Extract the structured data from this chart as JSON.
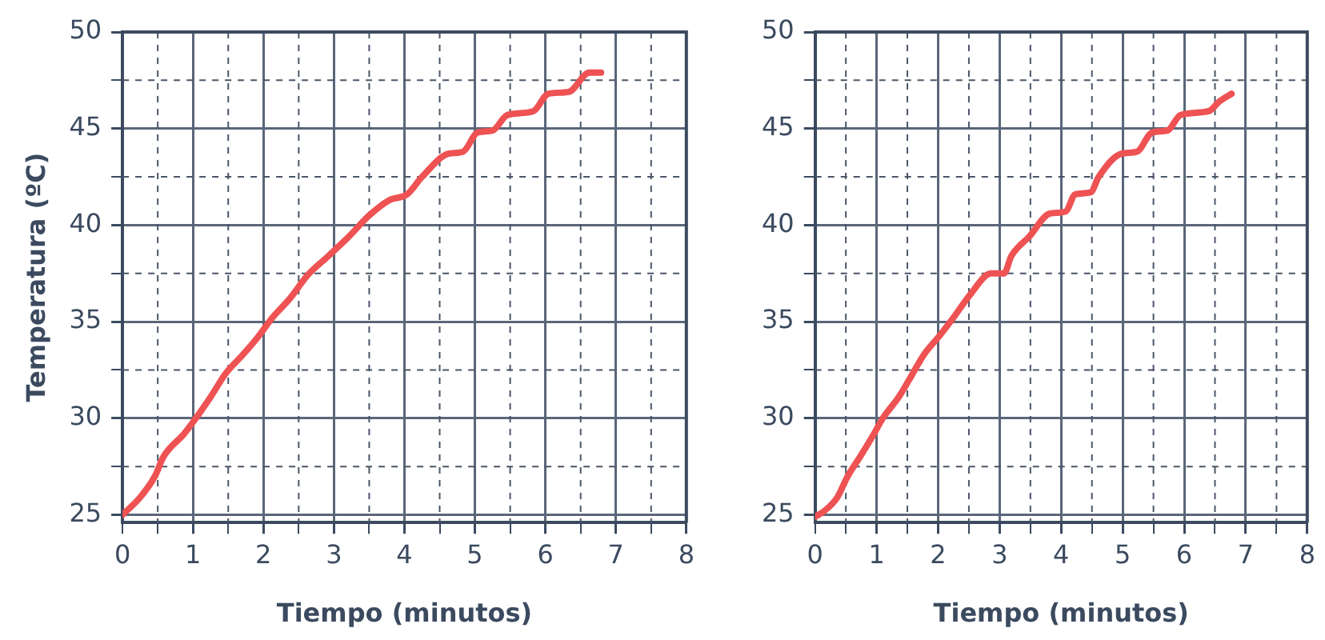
{
  "chart_data": [
    {
      "type": "line",
      "xlabel": "Tiempo (minutos)",
      "ylabel": "Temperatura (ºC)",
      "grid": true,
      "line_style": "solid",
      "marker": "none",
      "xlim": [
        0,
        8
      ],
      "ylim": [
        24.6,
        50
      ],
      "xticks": [
        0,
        {
          "value": 0.5,
          "label": null
        },
        1,
        {
          "value": 1.5,
          "label": null
        },
        2,
        {
          "value": 2.5,
          "label": null
        },
        3,
        {
          "value": 3.5,
          "label": null
        },
        4,
        {
          "value": 4.5,
          "label": null
        },
        5,
        {
          "value": 5.5,
          "label": null
        },
        6,
        {
          "value": 6.5,
          "label": null
        },
        7,
        {
          "value": 7.5,
          "label": null
        },
        8
      ],
      "yticks": [
        25,
        {
          "value": 27.5,
          "label": null
        },
        30,
        {
          "value": 32.5,
          "label": null
        },
        35,
        {
          "value": 37.5,
          "label": null
        },
        40,
        {
          "value": 42.5,
          "label": null
        },
        45,
        {
          "value": 47.5,
          "label": null
        },
        50
      ],
      "series": [
        {
          "color": "#ee5253",
          "x": [
            0,
            0.25,
            0.46,
            0.58,
            0.875,
            1.04,
            1.25,
            1.46,
            1.71,
            1.92,
            2.125,
            2.375,
            2.625,
            2.92,
            3.21,
            3.5,
            3.79,
            4.04,
            4.25,
            4.625,
            4.83,
            5.04,
            5.25,
            5.46,
            5.83,
            6.04,
            6.33,
            6.625,
            6.79
          ],
          "values": [
            25,
            25.9,
            27.0,
            28.0,
            29.2,
            30.0,
            31.1,
            32.3,
            33.3,
            34.2,
            35.2,
            36.2,
            37.4,
            38.4,
            39.4,
            40.5,
            41.3,
            41.6,
            42.5,
            43.7,
            43.8,
            44.8,
            44.9,
            45.7,
            45.9,
            46.8,
            46.9,
            47.9,
            47.9
          ]
        }
      ]
    },
    {
      "type": "line",
      "xlabel": "Tiempo (minutos)",
      "grid": true,
      "line_style": "solid",
      "marker": "none",
      "xlim": [
        0,
        8
      ],
      "ylim": [
        24.6,
        50
      ],
      "xticks": [
        0,
        {
          "value": 0.5,
          "label": null
        },
        1,
        {
          "value": 1.5,
          "label": null
        },
        2,
        {
          "value": 2.5,
          "label": null
        },
        3,
        {
          "value": 3.5,
          "label": null
        },
        4,
        {
          "value": 4.5,
          "label": null
        },
        5,
        {
          "value": 5.5,
          "label": null
        },
        6,
        {
          "value": 6.5,
          "label": null
        },
        7,
        {
          "value": 7.5,
          "label": null
        },
        8
      ],
      "yticks": [
        25,
        {
          "value": 27.5,
          "label": null
        },
        30,
        {
          "value": 32.5,
          "label": null
        },
        35,
        {
          "value": 37.5,
          "label": null
        },
        40,
        {
          "value": 42.5,
          "label": null
        },
        45,
        {
          "value": 47.5,
          "label": null
        },
        50
      ],
      "series": [
        {
          "color": "#ee5253",
          "x": [
            0,
            0.15,
            0.36,
            0.53,
            0.73,
            0.94,
            1.1,
            1.36,
            1.53,
            1.77,
            2.03,
            2.27,
            2.52,
            2.86,
            3.07,
            3.19,
            3.48,
            3.82,
            4.07,
            4.23,
            4.48,
            4.61,
            4.98,
            5.23,
            5.48,
            5.73,
            5.94,
            6.4,
            6.57,
            6.77
          ],
          "values": [
            24.9,
            25.2,
            25.9,
            27.0,
            28.0,
            29.1,
            30.0,
            31.1,
            32.0,
            33.3,
            34.3,
            35.3,
            36.4,
            37.5,
            37.5,
            38.4,
            39.4,
            40.6,
            40.7,
            41.6,
            41.7,
            42.5,
            43.7,
            43.8,
            44.8,
            44.9,
            45.7,
            45.9,
            46.4,
            46.8
          ]
        }
      ]
    }
  ]
}
